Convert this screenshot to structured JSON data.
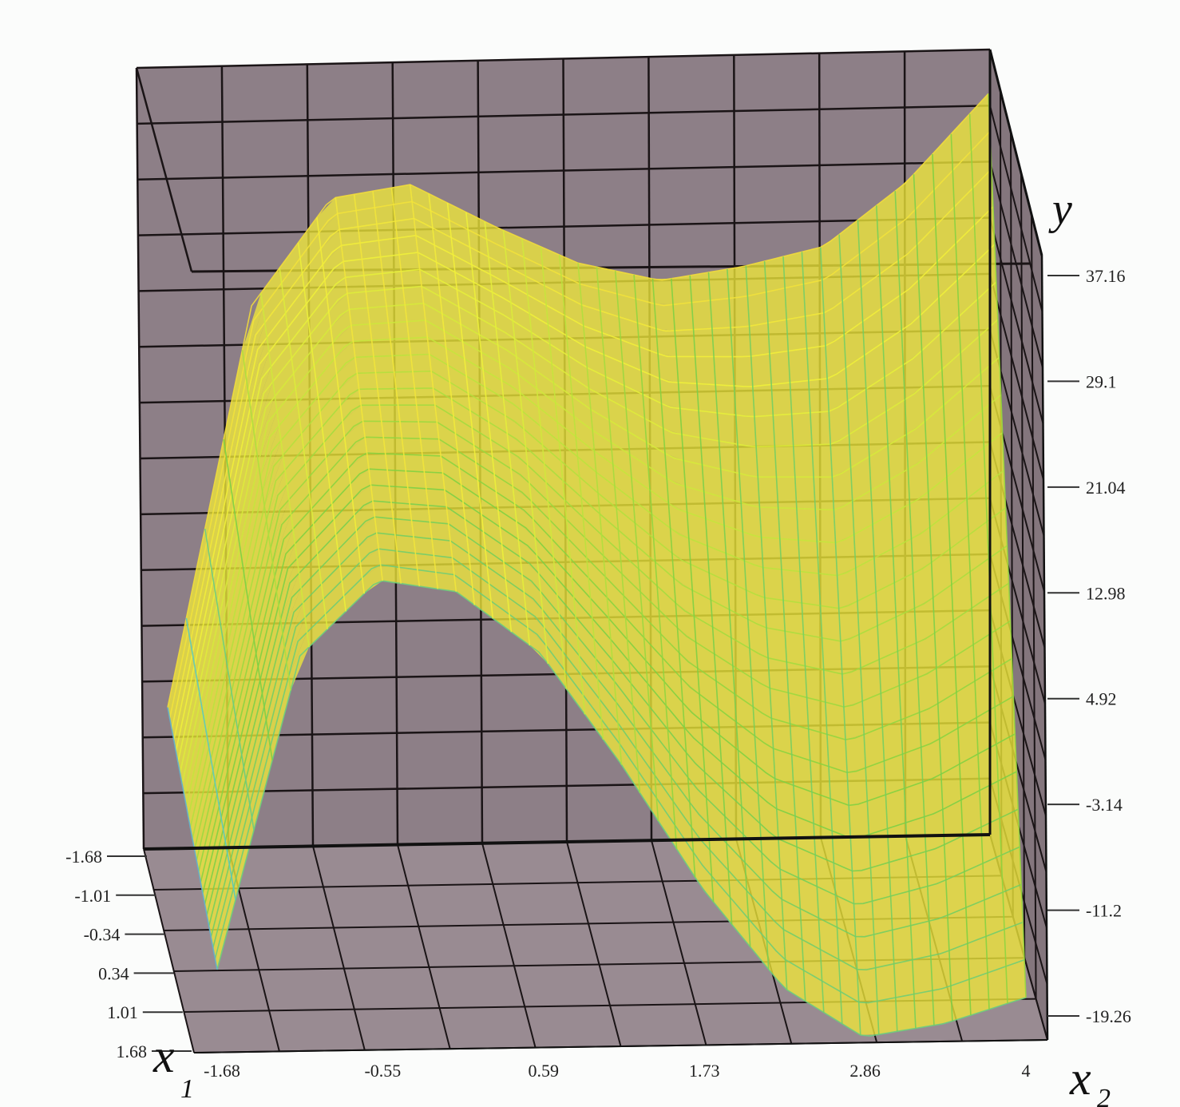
{
  "chart_data": {
    "type": "surface",
    "axes": {
      "x1": {
        "label": "x",
        "label_sub": "1",
        "ticks": [
          "-1.68",
          "-1.01",
          "-0.34",
          "0.34",
          "1.01",
          "1.68"
        ],
        "range": [
          -1.68,
          1.68
        ]
      },
      "x2": {
        "label": "x",
        "label_sub": "2",
        "ticks": [
          "-1.68",
          "-0.55",
          "0.59",
          "1.73",
          "2.86",
          "4"
        ],
        "range": [
          -1.68,
          4
        ]
      },
      "y": {
        "label": "y",
        "ticks": [
          "37.16",
          "29.1",
          "21.04",
          "12.98",
          "4.92",
          "-3.14",
          "-11.2",
          "-19.26"
        ],
        "range": [
          -19.26,
          37.16
        ]
      }
    },
    "surface_profile_vs_x2": {
      "x2": [
        -1.68,
        -1.1,
        -0.55,
        0.0,
        0.59,
        1.16,
        1.73,
        2.3,
        2.86,
        3.43,
        4.0
      ],
      "y_at_x1_-1.68": [
        -8.0,
        24.0,
        32.5,
        33.5,
        30.0,
        27.0,
        25.5,
        26.5,
        28.0,
        33.0,
        40.0
      ],
      "y_at_x1_1.68": [
        -13.0,
        12.0,
        18.0,
        17.0,
        12.0,
        3.0,
        -7.0,
        -15.0,
        -19.0,
        -18.0,
        -16.0
      ]
    },
    "colormap": [
      "#6e8cd6",
      "#58c8c8",
      "#7ed040",
      "#f2f23a",
      "#f0a040"
    ],
    "grid": true,
    "box_color": "#8d7f87"
  }
}
